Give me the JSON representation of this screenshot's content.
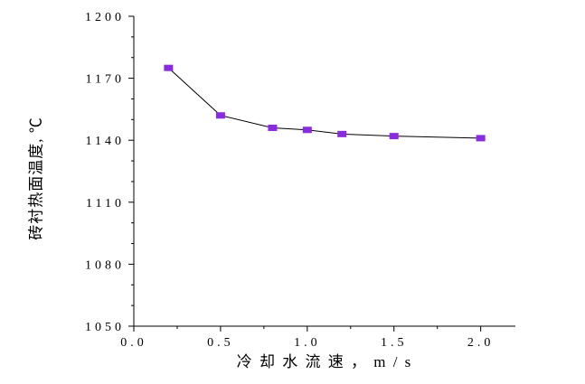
{
  "chart_data": {
    "type": "line",
    "x": [
      0.2,
      0.5,
      0.8,
      1.0,
      1.2,
      1.5,
      2.0
    ],
    "y": [
      1175,
      1152,
      1146,
      1145,
      1143,
      1142,
      1141
    ],
    "title": "",
    "xlabel": "冷 却 水 流 速 ， m / s",
    "ylabel": "砖衬热面温度, ℃",
    "xlim": [
      0.0,
      2.2
    ],
    "ylim": [
      1050,
      1200
    ],
    "xticks": [
      0.0,
      0.5,
      1.0,
      1.5,
      2.0
    ],
    "xtick_labels": [
      "0.0",
      "0.5",
      "1.0",
      "1.5",
      "2.0"
    ],
    "yticks": [
      1050,
      1080,
      1110,
      1140,
      1170,
      1200
    ],
    "ytick_labels": [
      "1050",
      "1080",
      "1110",
      "1140",
      "1170",
      "1200"
    ],
    "xminor": [
      0.25,
      0.75,
      1.25,
      1.75
    ],
    "yminor": [
      1060,
      1070,
      1090,
      1100,
      1120,
      1130,
      1150,
      1160,
      1180,
      1190
    ],
    "marker": "square",
    "marker_color": "#8a2be2",
    "line_color": "#000000",
    "axis_color": "#000000",
    "grid": false,
    "legend_position": "none"
  }
}
